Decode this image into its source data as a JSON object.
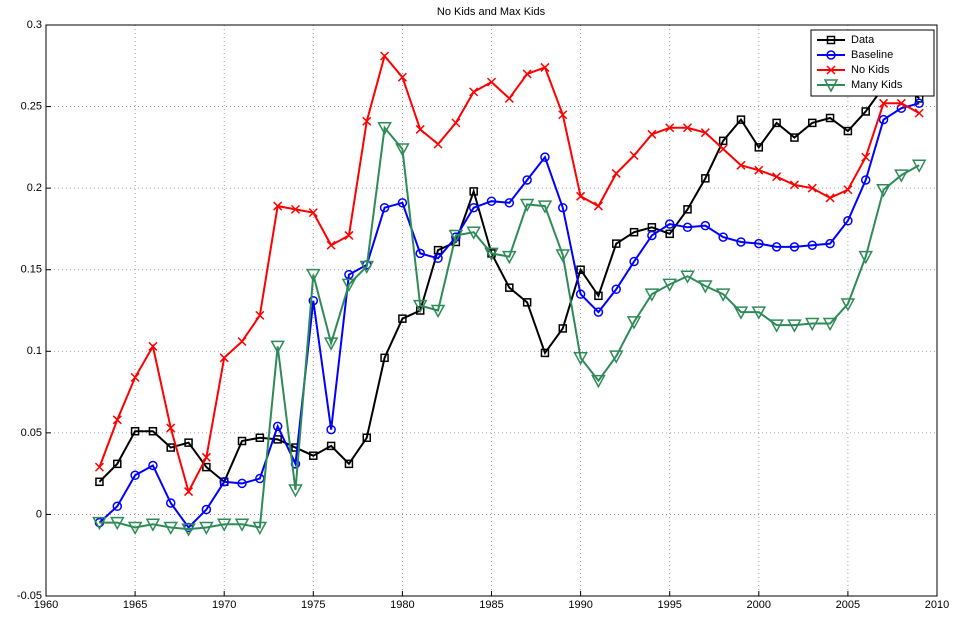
{
  "chart_data": {
    "type": "line",
    "title": "No Kids and Max Kids",
    "x": [
      1963,
      1964,
      1965,
      1966,
      1967,
      1968,
      1969,
      1970,
      1971,
      1972,
      1973,
      1974,
      1975,
      1976,
      1977,
      1978,
      1979,
      1980,
      1981,
      1982,
      1983,
      1984,
      1985,
      1986,
      1987,
      1988,
      1989,
      1990,
      1991,
      1992,
      1993,
      1994,
      1995,
      1996,
      1997,
      1998,
      1999,
      2000,
      2001,
      2002,
      2003,
      2004,
      2005,
      2006,
      2007,
      2008,
      2009
    ],
    "series": [
      {
        "name": "Data",
        "color": "#000000",
        "marker": "square",
        "values": [
          0.02,
          0.031,
          0.051,
          0.051,
          0.041,
          0.044,
          0.029,
          0.02,
          0.045,
          0.047,
          0.046,
          0.041,
          0.036,
          0.042,
          0.031,
          0.047,
          0.096,
          0.12,
          0.125,
          0.162,
          0.167,
          0.198,
          0.16,
          0.139,
          0.13,
          0.099,
          0.114,
          0.15,
          0.134,
          0.166,
          0.173,
          0.176,
          0.172,
          0.187,
          0.206,
          0.229,
          0.242,
          0.225,
          0.24,
          0.231,
          0.24,
          0.243,
          0.235,
          0.247,
          0.262,
          0.265,
          0.255
        ]
      },
      {
        "name": "Baseline",
        "color": "#0000ff",
        "marker": "circle",
        "values": [
          -0.005,
          0.005,
          0.024,
          0.03,
          0.007,
          -0.008,
          0.003,
          0.02,
          0.019,
          0.022,
          0.054,
          0.031,
          0.131,
          0.052,
          0.147,
          0.153,
          0.188,
          0.191,
          0.16,
          0.157,
          0.17,
          0.188,
          0.192,
          0.191,
          0.205,
          0.219,
          0.188,
          0.135,
          0.124,
          0.138,
          0.155,
          0.171,
          0.178,
          0.176,
          0.177,
          0.17,
          0.167,
          0.166,
          0.164,
          0.164,
          0.165,
          0.166,
          0.18,
          0.205,
          0.242,
          0.249,
          0.252
        ]
      },
      {
        "name": "No Kids",
        "color": "#ff0000",
        "marker": "x",
        "values": [
          0.029,
          0.058,
          0.084,
          0.103,
          0.053,
          0.014,
          0.035,
          0.096,
          0.106,
          0.122,
          0.189,
          0.187,
          0.185,
          0.165,
          0.171,
          0.241,
          0.281,
          0.268,
          0.236,
          0.227,
          0.24,
          0.259,
          0.265,
          0.255,
          0.27,
          0.274,
          0.245,
          0.195,
          0.189,
          0.209,
          0.22,
          0.233,
          0.237,
          0.237,
          0.234,
          0.224,
          0.214,
          0.211,
          0.207,
          0.202,
          0.2,
          0.194,
          0.199,
          0.219,
          0.252,
          0.252,
          0.246
        ]
      },
      {
        "name": "Many Kids",
        "color": "#2e8b57",
        "marker": "triangle-down",
        "values": [
          -0.005,
          -0.005,
          -0.008,
          -0.006,
          -0.008,
          -0.009,
          -0.008,
          -0.006,
          -0.006,
          -0.008,
          0.103,
          0.015,
          0.147,
          0.105,
          0.141,
          0.152,
          0.237,
          0.224,
          0.128,
          0.125,
          0.171,
          0.173,
          0.16,
          0.158,
          0.19,
          0.189,
          0.159,
          0.096,
          0.082,
          0.097,
          0.118,
          0.135,
          0.141,
          0.146,
          0.14,
          0.135,
          0.124,
          0.124,
          0.116,
          0.116,
          0.117,
          0.117,
          0.129,
          0.158,
          0.199,
          0.208,
          0.214
        ]
      }
    ],
    "xlim": [
      1960,
      2010
    ],
    "xticks": [
      1960,
      1965,
      1970,
      1975,
      1980,
      1985,
      1990,
      1995,
      2000,
      2005,
      2010
    ],
    "ylim": [
      -0.05,
      0.3
    ],
    "yticks": [
      -0.05,
      0,
      0.05,
      0.1,
      0.15,
      0.2,
      0.25,
      0.3
    ],
    "grid": true,
    "legend": "top-right"
  }
}
